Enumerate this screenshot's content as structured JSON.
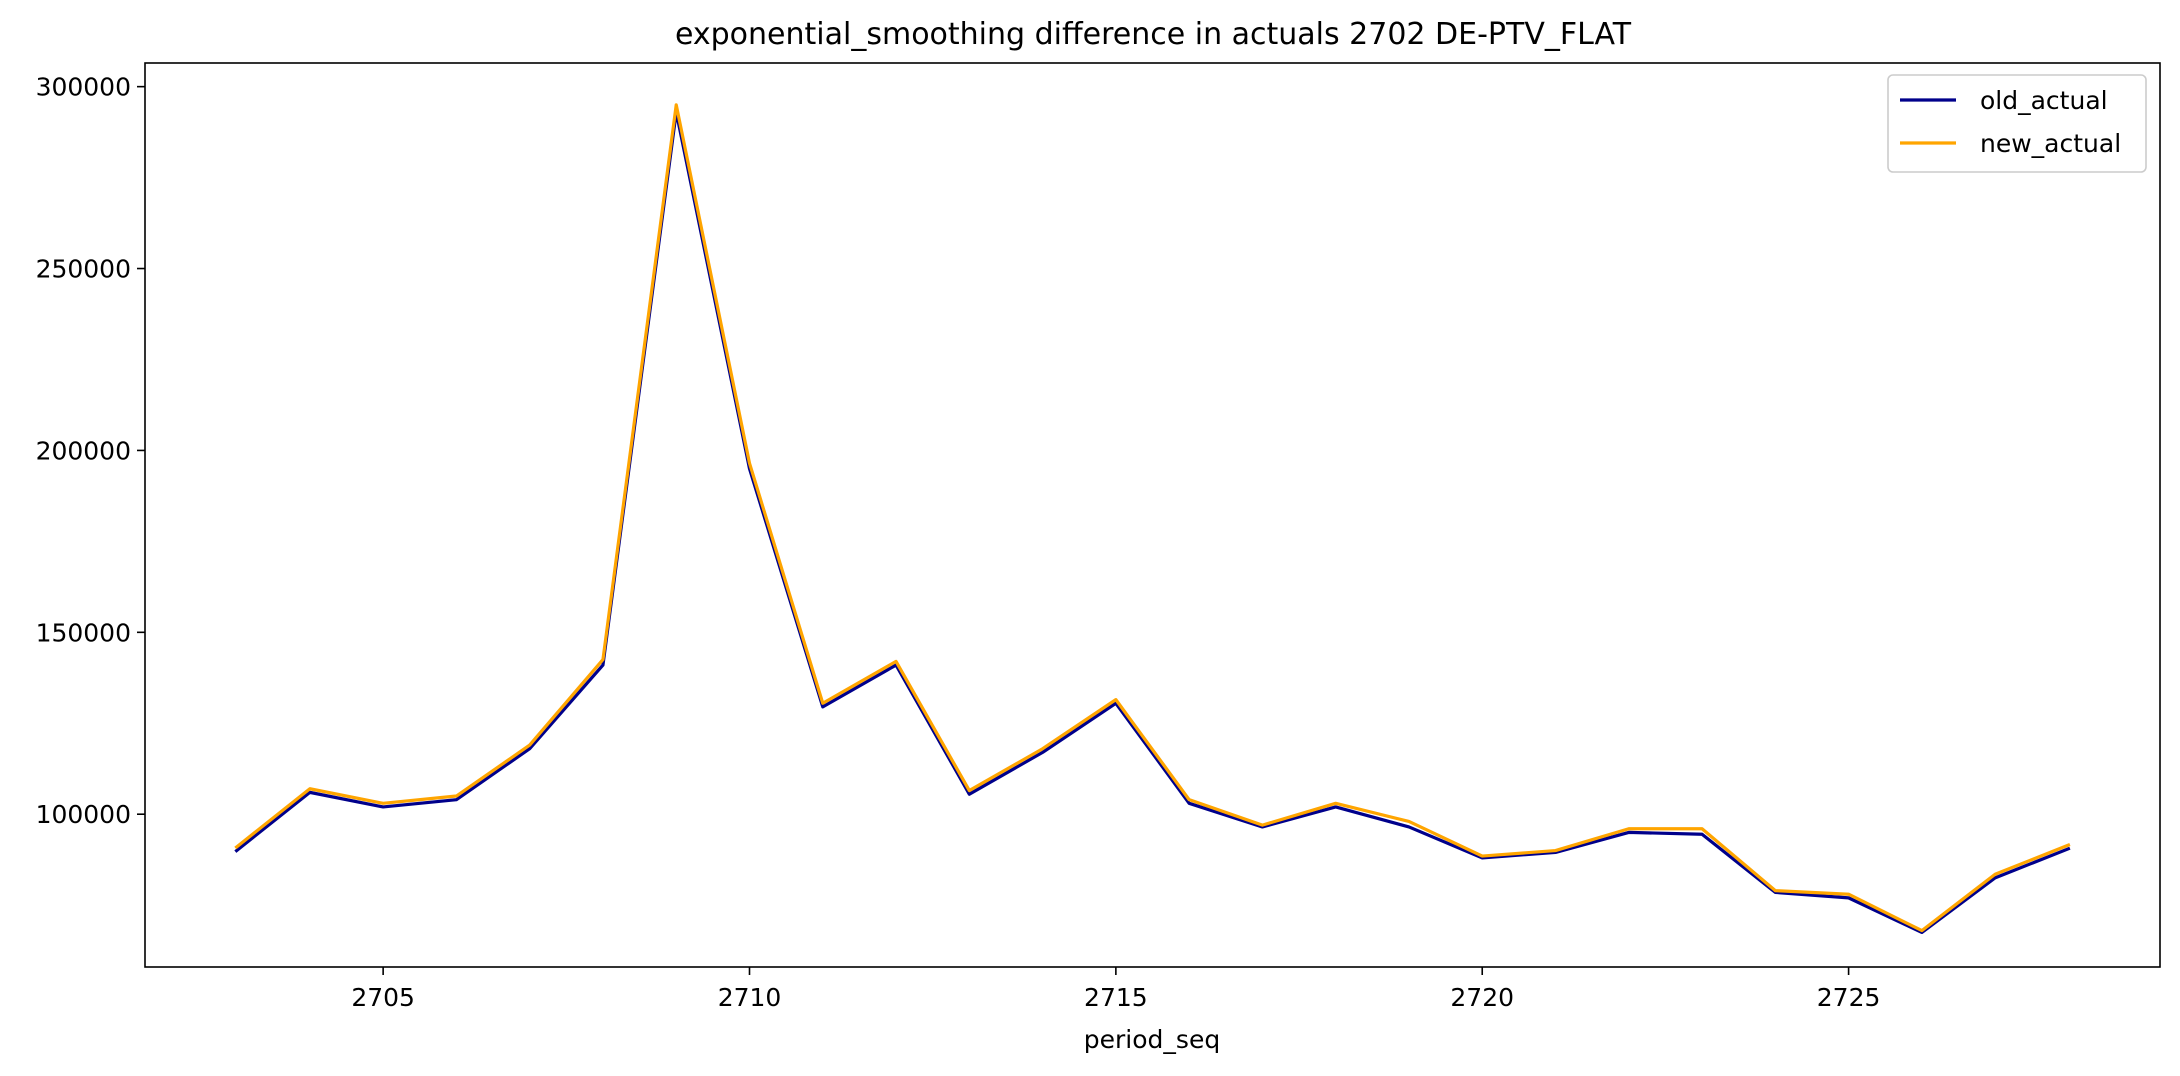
{
  "chart_data": {
    "type": "line",
    "title": "exponential_smoothing difference in actuals 2702 DE-PTV_FLAT",
    "xlabel": "period_seq",
    "ylabel": "",
    "xlim": [
      2701.75,
      2729.25
    ],
    "ylim": [
      58000,
      306500
    ],
    "x_ticks": [
      2705,
      2710,
      2715,
      2720,
      2725
    ],
    "y_ticks": [
      100000,
      150000,
      200000,
      250000,
      300000
    ],
    "grid": false,
    "legend_position": "top-right",
    "x": [
      2703,
      2704,
      2705,
      2706,
      2707,
      2708,
      2709,
      2710,
      2711,
      2712,
      2713,
      2714,
      2715,
      2716,
      2717,
      2718,
      2719,
      2720,
      2721,
      2722,
      2723,
      2724,
      2725,
      2726,
      2727,
      2728
    ],
    "series": [
      {
        "name": "old_actual",
        "color": "#00008b",
        "values": [
          90000,
          106000,
          102000,
          104000,
          118000,
          141000,
          293000,
          195000,
          129500,
          141000,
          105500,
          117000,
          130500,
          103000,
          96500,
          102000,
          96500,
          88000,
          89500,
          95000,
          94500,
          78500,
          77000,
          67500,
          82500,
          90500
        ]
      },
      {
        "name": "new_actual",
        "color": "#ffa500",
        "values": [
          91000,
          107000,
          103000,
          105000,
          119000,
          142500,
          295000,
          196500,
          130500,
          142000,
          106500,
          118000,
          131500,
          104000,
          97000,
          103000,
          98000,
          88500,
          90000,
          96000,
          96000,
          79000,
          78000,
          68000,
          83500,
          91500
        ]
      }
    ]
  }
}
